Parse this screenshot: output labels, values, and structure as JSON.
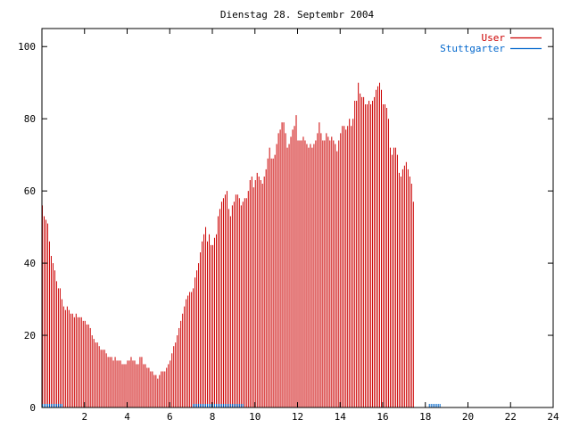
{
  "chart_data": {
    "type": "bar",
    "title": "Dienstag 28. Septembr 2004",
    "xlabel": "",
    "ylabel": "",
    "xlim": [
      0,
      24
    ],
    "ylim": [
      0,
      105
    ],
    "x_ticks": [
      2,
      4,
      6,
      8,
      10,
      12,
      14,
      16,
      18,
      20,
      22,
      24
    ],
    "y_ticks": [
      0,
      20,
      40,
      60,
      80,
      100
    ],
    "grid": false,
    "legend_position": "top-right",
    "interval_minutes": 5,
    "series": [
      {
        "name": "User",
        "color": "#cc0000",
        "values": [
          56,
          53,
          52,
          51,
          46,
          42,
          40,
          38,
          35,
          33,
          33,
          30,
          28,
          27,
          28,
          27,
          26,
          26,
          25,
          26,
          25,
          25,
          25,
          24,
          24,
          23,
          23,
          22,
          20,
          19,
          18,
          18,
          17,
          16,
          16,
          16,
          15,
          14,
          14,
          14,
          13,
          14,
          13,
          13,
          13,
          12,
          12,
          12,
          13,
          13,
          14,
          13,
          13,
          12,
          12,
          14,
          14,
          12,
          12,
          11,
          11,
          10,
          10,
          9,
          9,
          8,
          9,
          10,
          10,
          10,
          11,
          12,
          13,
          15,
          17,
          18,
          20,
          22,
          24,
          26,
          28,
          30,
          31,
          32,
          32,
          33,
          36,
          38,
          40,
          43,
          46,
          48,
          50,
          46,
          48,
          45,
          45,
          47,
          48,
          53,
          55,
          57,
          58,
          59,
          60,
          55,
          53,
          56,
          57,
          59,
          59,
          58,
          56,
          57,
          58,
          58,
          60,
          63,
          64,
          61,
          63,
          65,
          64,
          63,
          62,
          64,
          66,
          69,
          72,
          69,
          69,
          70,
          73,
          76,
          77,
          79,
          79,
          76,
          72,
          73,
          75,
          77,
          78,
          81,
          74,
          74,
          74,
          75,
          74,
          73,
          72,
          73,
          72,
          73,
          74,
          76,
          79,
          76,
          74,
          74,
          76,
          75,
          74,
          75,
          74,
          73,
          71,
          74,
          76,
          78,
          78,
          77,
          78,
          80,
          78,
          80,
          85,
          85,
          90,
          87,
          86,
          86,
          84,
          84,
          85,
          84,
          85,
          86,
          88,
          89,
          90,
          88,
          84,
          84,
          83,
          80,
          72,
          70,
          72,
          72,
          70,
          65,
          64,
          66,
          67,
          68,
          66,
          64,
          62,
          57
        ]
      },
      {
        "name": "Stuttgarter",
        "color": "#0066cc",
        "values": [
          1,
          1,
          1,
          1,
          1,
          1,
          1,
          1,
          1,
          1,
          1,
          1,
          0,
          0,
          0,
          0,
          0,
          0,
          0,
          0,
          0,
          0,
          0,
          0,
          0,
          0,
          0,
          0,
          0,
          0,
          0,
          0,
          0,
          0,
          0,
          0,
          0,
          0,
          0,
          0,
          0,
          0,
          0,
          0,
          0,
          0,
          0,
          0,
          0,
          0,
          0,
          0,
          0,
          0,
          0,
          0,
          0,
          0,
          0,
          0,
          0,
          0,
          0,
          0,
          0,
          0,
          0,
          0,
          0,
          0,
          0,
          0,
          0,
          0,
          0,
          0,
          0,
          0,
          0,
          0,
          0,
          0,
          0,
          0,
          0,
          1,
          1,
          1,
          1,
          1,
          1,
          1,
          1,
          1,
          1,
          1,
          1,
          1,
          1,
          1,
          1,
          1,
          1,
          1,
          1,
          1,
          1,
          1,
          1,
          1,
          1,
          1,
          1,
          1,
          0,
          0,
          0,
          0,
          0,
          0,
          0,
          0,
          0,
          0,
          0,
          0,
          0,
          0,
          0,
          0,
          0,
          0,
          0,
          0,
          0,
          0,
          0,
          0,
          0,
          0,
          0,
          0,
          0,
          0,
          0,
          0,
          0,
          0,
          0,
          0,
          0,
          0,
          0,
          0,
          0,
          0,
          0,
          0,
          0,
          0,
          0,
          0,
          0,
          0,
          0,
          0,
          0,
          0,
          0,
          0,
          0,
          0,
          0,
          0,
          0,
          0,
          0,
          0,
          0,
          0,
          0,
          0,
          0,
          0,
          0,
          0,
          0,
          0,
          0,
          0,
          0,
          0,
          0,
          0,
          0,
          0,
          0,
          0,
          0,
          0,
          0,
          0,
          0,
          0,
          0,
          0,
          0,
          0,
          0,
          0,
          0,
          0,
          0,
          0,
          0,
          0,
          0,
          0,
          1,
          1,
          1,
          1,
          1,
          1,
          1
        ]
      }
    ]
  }
}
